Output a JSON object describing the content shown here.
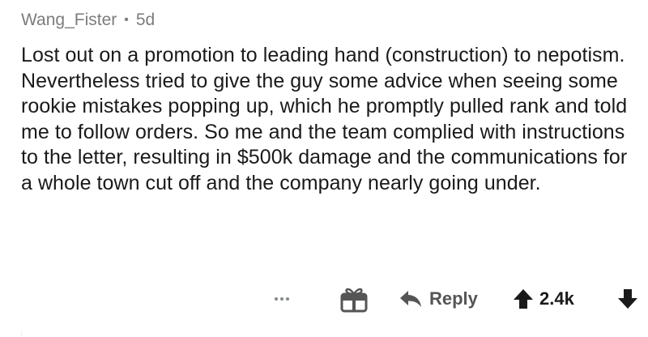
{
  "comment": {
    "author": "Wang_Fister",
    "separator": "•",
    "age": "5d",
    "body": "Lost out on a promotion to leading hand (construction) to nepotism. Nevertheless tried to give the guy some advice when seeing some rookie mistakes popping up, which he promptly pulled rank and told me to follow orders. So me and the team complied with instructions to the letter, resulting in $500k damage and the communications for a whole town cut off and the company nearly going under.",
    "actions": {
      "more_icon": "more-dots-icon",
      "award_icon": "gift-award-icon",
      "reply_icon": "reply-arrow-icon",
      "reply_label": "Reply",
      "upvote_icon": "upvote-arrow-icon",
      "score": "2.4k",
      "downvote_icon": "downvote-arrow-icon"
    }
  },
  "colors": {
    "text": "#1a1a1b",
    "meta": "#7c7c7c",
    "icon": "#555555"
  }
}
